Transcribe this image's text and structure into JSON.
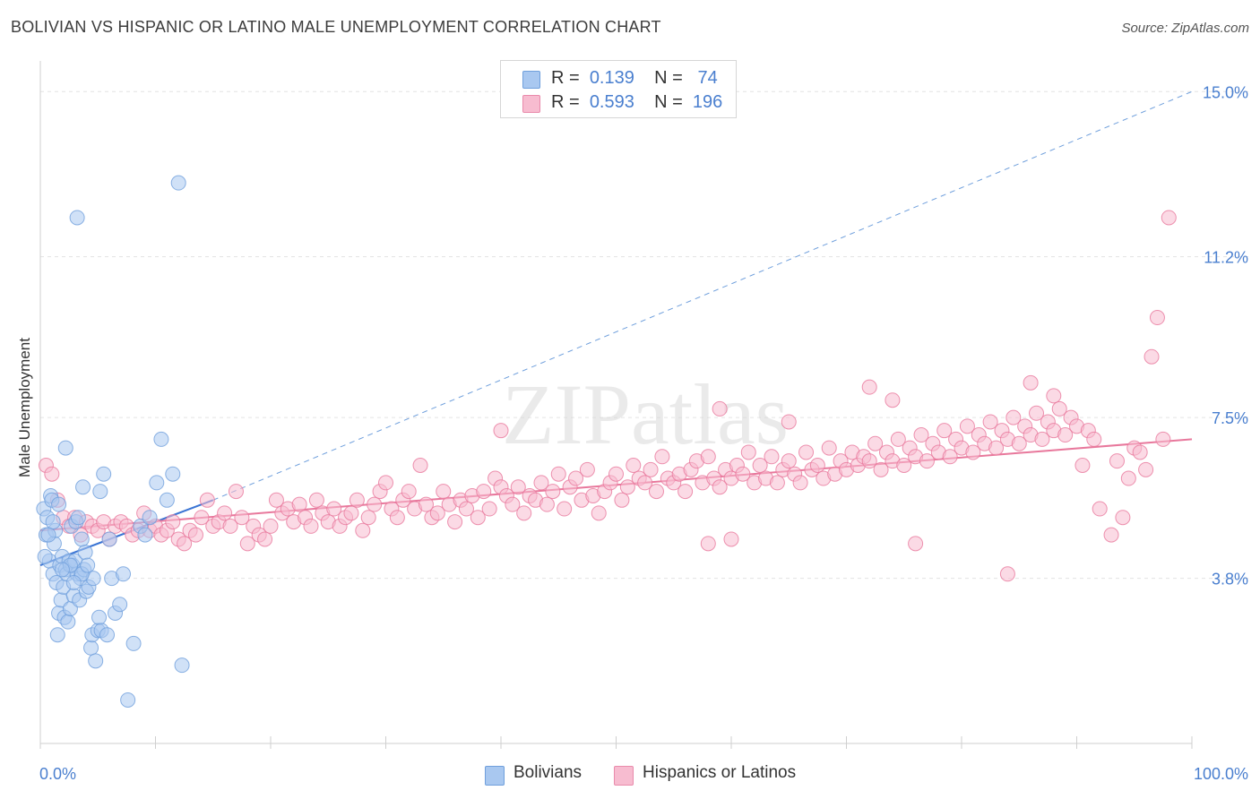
{
  "title": "BOLIVIAN VS HISPANIC OR LATINO MALE UNEMPLOYMENT CORRELATION CHART",
  "source": "Source: ZipAtlas.com",
  "watermark": "ZIPatlas",
  "legend": {
    "rows": [
      {
        "r_label": "R =",
        "r_value": "0.139",
        "n_label": "N =",
        "n_value": "74",
        "color": "#a9c8f0",
        "border": "#6f9fdc"
      },
      {
        "r_label": "R =",
        "r_value": "0.593",
        "n_label": "N =",
        "n_value": "196",
        "color": "#f7bcd0",
        "border": "#e98aab"
      }
    ]
  },
  "bottom_legend": [
    {
      "label": "Bolivians",
      "color": "#a9c8f0",
      "border": "#6f9fdc"
    },
    {
      "label": "Hispanics or Latinos",
      "color": "#f7bcd0",
      "border": "#e98aab"
    }
  ],
  "chart_data": {
    "type": "scatter",
    "title": "BOLIVIAN VS HISPANIC OR LATINO MALE UNEMPLOYMENT CORRELATION CHART",
    "xlabel": "",
    "ylabel": "Male Unemployment",
    "xlim": [
      0,
      100
    ],
    "ylim": [
      0,
      15.5
    ],
    "x_tick_labels": [
      "0.0%",
      "100.0%"
    ],
    "y_ticks": [
      3.8,
      7.5,
      11.2,
      15.0
    ],
    "y_tick_labels": [
      "3.8%",
      "7.5%",
      "11.2%",
      "15.0%"
    ],
    "grid": true,
    "legend_position": "top-center",
    "series": [
      {
        "name": "Bolivians",
        "color": "#6f9fdc",
        "fill": "#a9c8f0",
        "trend": {
          "x": [
            0,
            15
          ],
          "y": [
            4.1,
            5.6
          ],
          "extend_to": [
            100,
            15.0
          ]
        },
        "points": [
          [
            0.3,
            5.4
          ],
          [
            0.5,
            4.8
          ],
          [
            0.6,
            5.2
          ],
          [
            0.8,
            4.2
          ],
          [
            0.9,
            5.7
          ],
          [
            1.0,
            5.6
          ],
          [
            1.1,
            3.9
          ],
          [
            1.2,
            4.6
          ],
          [
            1.3,
            4.9
          ],
          [
            1.4,
            3.7
          ],
          [
            1.5,
            2.5
          ],
          [
            1.6,
            3.0
          ],
          [
            1.7,
            4.1
          ],
          [
            1.8,
            3.3
          ],
          [
            1.9,
            4.3
          ],
          [
            2.0,
            3.6
          ],
          [
            2.1,
            2.9
          ],
          [
            2.2,
            4.0
          ],
          [
            2.3,
            3.9
          ],
          [
            2.4,
            2.8
          ],
          [
            2.5,
            4.2
          ],
          [
            2.6,
            3.1
          ],
          [
            2.7,
            5.0
          ],
          [
            2.8,
            4.1
          ],
          [
            2.9,
            3.4
          ],
          [
            3.0,
            4.2
          ],
          [
            3.1,
            5.1
          ],
          [
            3.2,
            3.9
          ],
          [
            3.3,
            5.2
          ],
          [
            3.4,
            3.3
          ],
          [
            3.5,
            3.8
          ],
          [
            3.6,
            4.7
          ],
          [
            3.7,
            5.9
          ],
          [
            3.8,
            4.0
          ],
          [
            3.9,
            4.4
          ],
          [
            4.0,
            3.5
          ],
          [
            4.2,
            3.6
          ],
          [
            4.4,
            2.2
          ],
          [
            4.5,
            2.5
          ],
          [
            4.6,
            3.8
          ],
          [
            4.8,
            1.9
          ],
          [
            5.0,
            2.6
          ],
          [
            5.1,
            2.9
          ],
          [
            5.3,
            2.6
          ],
          [
            5.5,
            6.2
          ],
          [
            5.8,
            2.5
          ],
          [
            6.0,
            4.7
          ],
          [
            6.2,
            3.8
          ],
          [
            6.5,
            3.0
          ],
          [
            6.9,
            3.2
          ],
          [
            7.2,
            3.9
          ],
          [
            7.6,
            1.0
          ],
          [
            8.1,
            2.3
          ],
          [
            8.7,
            5.0
          ],
          [
            9.1,
            4.8
          ],
          [
            9.5,
            5.2
          ],
          [
            10.1,
            6.0
          ],
          [
            10.5,
            7.0
          ],
          [
            11.0,
            5.6
          ],
          [
            11.5,
            6.2
          ],
          [
            12.0,
            12.9
          ],
          [
            12.3,
            1.8
          ],
          [
            3.2,
            12.1
          ],
          [
            1.1,
            5.1
          ],
          [
            2.6,
            4.1
          ],
          [
            0.7,
            4.8
          ],
          [
            1.9,
            4.0
          ],
          [
            3.6,
            3.9
          ],
          [
            4.1,
            4.1
          ],
          [
            2.2,
            6.8
          ],
          [
            5.2,
            5.8
          ],
          [
            0.4,
            4.3
          ],
          [
            1.6,
            5.5
          ],
          [
            2.9,
            3.7
          ]
        ]
      },
      {
        "name": "Hispanics or Latinos",
        "color": "#e8789c",
        "fill": "#f7bcd0",
        "trend": {
          "x": [
            0,
            100
          ],
          "y": [
            4.9,
            7.0
          ]
        },
        "points": [
          [
            0.5,
            6.4
          ],
          [
            1.0,
            6.2
          ],
          [
            1.5,
            5.6
          ],
          [
            2.0,
            5.2
          ],
          [
            2.5,
            5.0
          ],
          [
            3.0,
            5.2
          ],
          [
            3.5,
            4.8
          ],
          [
            4.0,
            5.1
          ],
          [
            4.5,
            5.0
          ],
          [
            5.0,
            4.9
          ],
          [
            5.5,
            5.1
          ],
          [
            6.0,
            4.7
          ],
          [
            6.5,
            5.0
          ],
          [
            7.0,
            5.1
          ],
          [
            7.5,
            5.0
          ],
          [
            8.0,
            4.8
          ],
          [
            8.5,
            4.9
          ],
          [
            9.0,
            5.3
          ],
          [
            9.5,
            4.9
          ],
          [
            10.0,
            5.0
          ],
          [
            10.5,
            4.8
          ],
          [
            11.0,
            4.9
          ],
          [
            11.5,
            5.1
          ],
          [
            12.0,
            4.7
          ],
          [
            12.5,
            4.6
          ],
          [
            13.0,
            4.9
          ],
          [
            13.5,
            4.8
          ],
          [
            14.0,
            5.2
          ],
          [
            14.5,
            5.6
          ],
          [
            15.0,
            5.0
          ],
          [
            15.5,
            5.1
          ],
          [
            16.0,
            5.3
          ],
          [
            16.5,
            5.0
          ],
          [
            17.0,
            5.8
          ],
          [
            17.5,
            5.2
          ],
          [
            18.0,
            4.6
          ],
          [
            18.5,
            5.0
          ],
          [
            19.0,
            4.8
          ],
          [
            19.5,
            4.7
          ],
          [
            20.0,
            5.0
          ],
          [
            20.5,
            5.6
          ],
          [
            21.0,
            5.3
          ],
          [
            21.5,
            5.4
          ],
          [
            22.0,
            5.1
          ],
          [
            22.5,
            5.5
          ],
          [
            23.0,
            5.2
          ],
          [
            23.5,
            5.0
          ],
          [
            24.0,
            5.6
          ],
          [
            24.5,
            5.3
          ],
          [
            25.0,
            5.1
          ],
          [
            25.5,
            5.4
          ],
          [
            26.0,
            5.0
          ],
          [
            26.5,
            5.2
          ],
          [
            27.0,
            5.3
          ],
          [
            27.5,
            5.6
          ],
          [
            28.0,
            4.9
          ],
          [
            28.5,
            5.2
          ],
          [
            29.0,
            5.5
          ],
          [
            29.5,
            5.8
          ],
          [
            30.0,
            6.0
          ],
          [
            30.5,
            5.4
          ],
          [
            31.0,
            5.2
          ],
          [
            31.5,
            5.6
          ],
          [
            32.0,
            5.8
          ],
          [
            32.5,
            5.4
          ],
          [
            33.0,
            6.4
          ],
          [
            33.5,
            5.5
          ],
          [
            34.0,
            5.2
          ],
          [
            34.5,
            5.3
          ],
          [
            35.0,
            5.8
          ],
          [
            35.5,
            5.5
          ],
          [
            36.0,
            5.1
          ],
          [
            36.5,
            5.6
          ],
          [
            37.0,
            5.4
          ],
          [
            37.5,
            5.7
          ],
          [
            38.0,
            5.2
          ],
          [
            38.5,
            5.8
          ],
          [
            39.0,
            5.4
          ],
          [
            39.5,
            6.1
          ],
          [
            40.0,
            5.9
          ],
          [
            40.5,
            5.7
          ],
          [
            41.0,
            5.5
          ],
          [
            41.5,
            5.9
          ],
          [
            42.0,
            5.3
          ],
          [
            42.5,
            5.7
          ],
          [
            43.0,
            5.6
          ],
          [
            43.5,
            6.0
          ],
          [
            44.0,
            5.5
          ],
          [
            44.5,
            5.8
          ],
          [
            45.0,
            6.2
          ],
          [
            45.5,
            5.4
          ],
          [
            46.0,
            5.9
          ],
          [
            46.5,
            6.1
          ],
          [
            47.0,
            5.6
          ],
          [
            47.5,
            6.3
          ],
          [
            48.0,
            5.7
          ],
          [
            48.5,
            5.3
          ],
          [
            49.0,
            5.8
          ],
          [
            49.5,
            6.0
          ],
          [
            50.0,
            6.2
          ],
          [
            50.5,
            5.6
          ],
          [
            51.0,
            5.9
          ],
          [
            51.5,
            6.4
          ],
          [
            52.0,
            6.1
          ],
          [
            52.5,
            6.0
          ],
          [
            53.0,
            6.3
          ],
          [
            53.5,
            5.8
          ],
          [
            54.0,
            6.6
          ],
          [
            54.5,
            6.1
          ],
          [
            55.0,
            6.0
          ],
          [
            55.5,
            6.2
          ],
          [
            56.0,
            5.8
          ],
          [
            56.5,
            6.3
          ],
          [
            57.0,
            6.5
          ],
          [
            57.5,
            6.0
          ],
          [
            58.0,
            6.6
          ],
          [
            58.5,
            6.1
          ],
          [
            59.0,
            5.9
          ],
          [
            59.5,
            6.3
          ],
          [
            60.0,
            6.1
          ],
          [
            60.5,
            6.4
          ],
          [
            61.0,
            6.2
          ],
          [
            61.5,
            6.7
          ],
          [
            62.0,
            6.0
          ],
          [
            62.5,
            6.4
          ],
          [
            63.0,
            6.1
          ],
          [
            63.5,
            6.6
          ],
          [
            64.0,
            6.0
          ],
          [
            64.5,
            6.3
          ],
          [
            65.0,
            6.5
          ],
          [
            65.5,
            6.2
          ],
          [
            66.0,
            6.0
          ],
          [
            66.5,
            6.7
          ],
          [
            67.0,
            6.3
          ],
          [
            67.5,
            6.4
          ],
          [
            68.0,
            6.1
          ],
          [
            68.5,
            6.8
          ],
          [
            69.0,
            6.2
          ],
          [
            69.5,
            6.5
          ],
          [
            70.0,
            6.3
          ],
          [
            70.5,
            6.7
          ],
          [
            71.0,
            6.4
          ],
          [
            71.5,
            6.6
          ],
          [
            72.0,
            6.5
          ],
          [
            72.5,
            6.9
          ],
          [
            73.0,
            6.3
          ],
          [
            73.5,
            6.7
          ],
          [
            74.0,
            6.5
          ],
          [
            74.5,
            7.0
          ],
          [
            75.0,
            6.4
          ],
          [
            75.5,
            6.8
          ],
          [
            76.0,
            6.6
          ],
          [
            76.5,
            7.1
          ],
          [
            77.0,
            6.5
          ],
          [
            77.5,
            6.9
          ],
          [
            78.0,
            6.7
          ],
          [
            78.5,
            7.2
          ],
          [
            79.0,
            6.6
          ],
          [
            79.5,
            7.0
          ],
          [
            80.0,
            6.8
          ],
          [
            80.5,
            7.3
          ],
          [
            81.0,
            6.7
          ],
          [
            81.5,
            7.1
          ],
          [
            82.0,
            6.9
          ],
          [
            82.5,
            7.4
          ],
          [
            83.0,
            6.8
          ],
          [
            83.5,
            7.2
          ],
          [
            84.0,
            7.0
          ],
          [
            84.5,
            7.5
          ],
          [
            85.0,
            6.9
          ],
          [
            85.5,
            7.3
          ],
          [
            86.0,
            7.1
          ],
          [
            86.5,
            7.6
          ],
          [
            87.0,
            7.0
          ],
          [
            87.5,
            7.4
          ],
          [
            88.0,
            7.2
          ],
          [
            88.5,
            7.7
          ],
          [
            89.0,
            7.1
          ],
          [
            89.5,
            7.5
          ],
          [
            90.0,
            7.3
          ],
          [
            40.0,
            7.2
          ],
          [
            59.0,
            7.7
          ],
          [
            65.0,
            7.4
          ],
          [
            72.0,
            8.2
          ],
          [
            74.0,
            7.9
          ],
          [
            86.0,
            8.3
          ],
          [
            88.0,
            8.0
          ],
          [
            91.0,
            7.2
          ],
          [
            95.0,
            6.8
          ],
          [
            97.0,
            9.8
          ],
          [
            98.0,
            12.1
          ],
          [
            96.5,
            8.9
          ],
          [
            58.0,
            4.6
          ],
          [
            60.0,
            4.7
          ],
          [
            76.0,
            4.6
          ],
          [
            84.0,
            3.9
          ],
          [
            93.0,
            4.8
          ],
          [
            92.0,
            5.4
          ],
          [
            94.0,
            5.2
          ],
          [
            90.5,
            6.4
          ],
          [
            91.5,
            7.0
          ],
          [
            93.5,
            6.5
          ],
          [
            94.5,
            6.1
          ],
          [
            95.5,
            6.7
          ],
          [
            96.0,
            6.3
          ],
          [
            97.5,
            7.0
          ]
        ]
      }
    ]
  }
}
